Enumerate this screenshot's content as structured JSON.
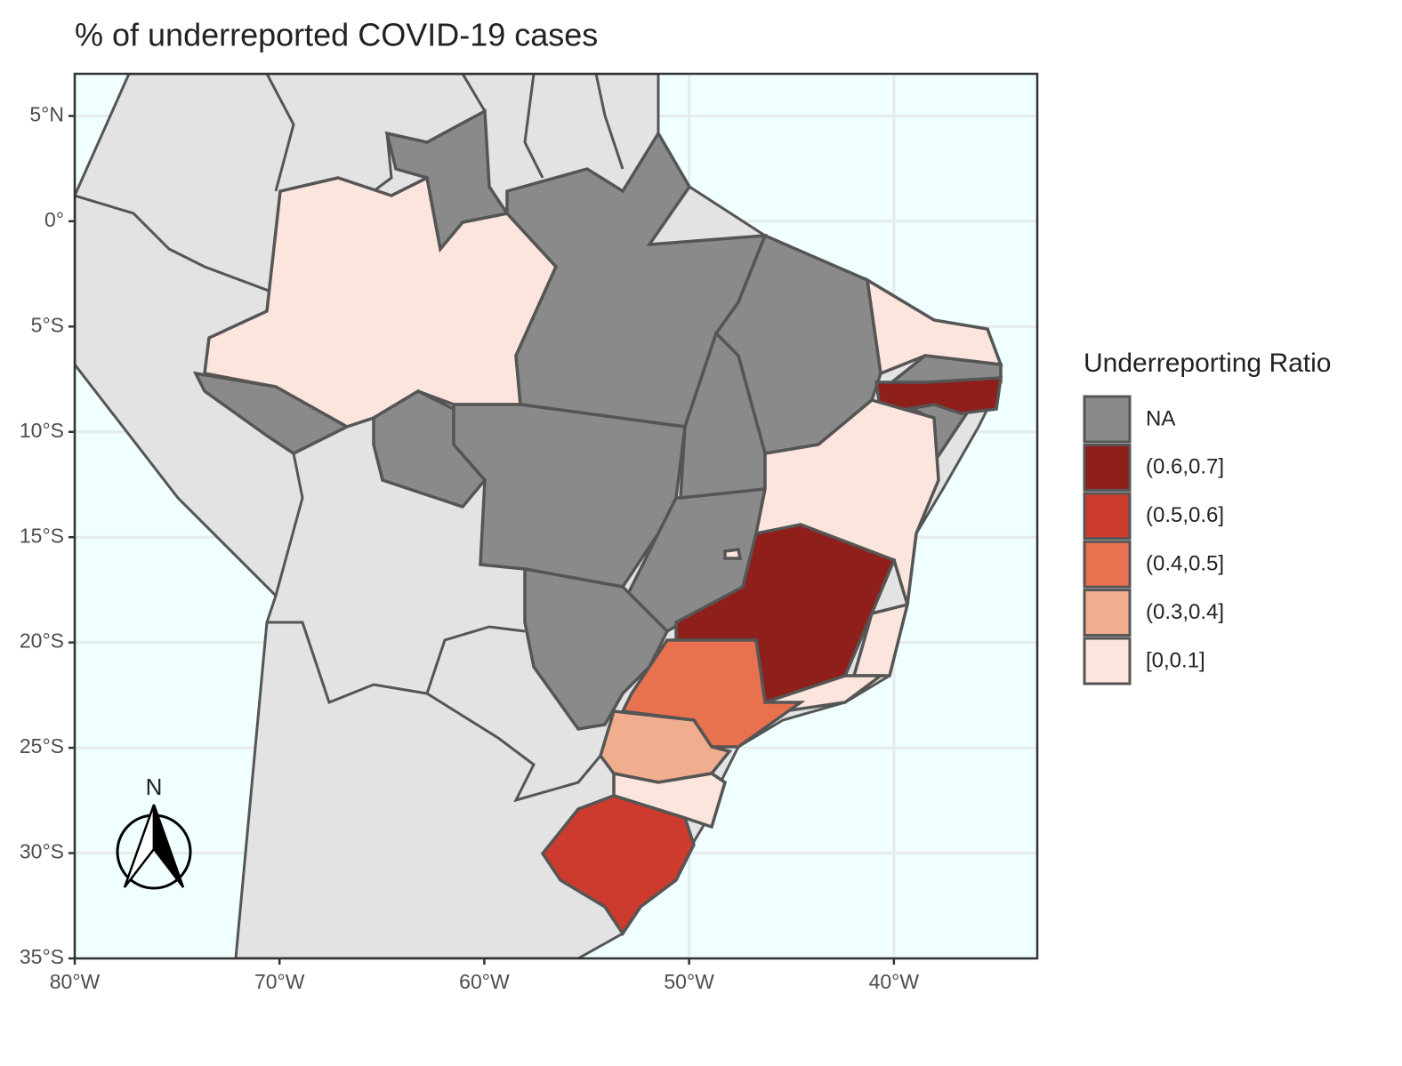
{
  "chart_data": {
    "type": "choropleth-map",
    "title": "% of underreported COVID-19 cases",
    "xlim": [
      -80,
      -33
    ],
    "ylim": [
      -35,
      7
    ],
    "xticks": [
      {
        "value": -80,
        "label": "80°W"
      },
      {
        "value": -70,
        "label": "70°W"
      },
      {
        "value": -60,
        "label": "60°W"
      },
      {
        "value": -50,
        "label": "50°W"
      },
      {
        "value": -40,
        "label": "40°W"
      }
    ],
    "yticks": [
      {
        "value": 5,
        "label": "5°N"
      },
      {
        "value": 0,
        "label": "0°"
      },
      {
        "value": -5,
        "label": "5°S"
      },
      {
        "value": -10,
        "label": "10°S"
      },
      {
        "value": -15,
        "label": "15°S"
      },
      {
        "value": -20,
        "label": "20°S"
      },
      {
        "value": -25,
        "label": "25°S"
      },
      {
        "value": -30,
        "label": "30°S"
      },
      {
        "value": -35,
        "label": "35°S"
      }
    ],
    "grid": true,
    "legend": {
      "title": "Underreporting Ratio",
      "position": "right",
      "items": [
        {
          "label": "NA",
          "color": "#8a8a8a"
        },
        {
          "label": "(0.6,0.7]",
          "color": "#8f1f1b"
        },
        {
          "label": "(0.5,0.6]",
          "color": "#cc3b2e"
        },
        {
          "label": "(0.4,0.5]",
          "color": "#e8714f"
        },
        {
          "label": "(0.3,0.4]",
          "color": "#f0ae8f"
        },
        {
          "label": "[0,0.1]",
          "color": "#fbe5dc"
        }
      ]
    },
    "north_arrow": "N"
  }
}
